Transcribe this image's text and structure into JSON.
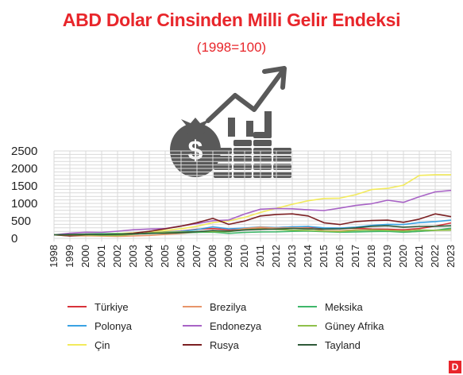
{
  "title": "ABD Dolar Cinsinden Milli Gelir Endeksi",
  "subtitle": "(1998=100)",
  "logo_text": "D",
  "chart_data": {
    "type": "line",
    "title": "ABD Dolar Cinsinden Milli Gelir Endeksi",
    "subtitle": "(1998=100)",
    "x": [
      "1998",
      "1999",
      "2000",
      "2001",
      "2002",
      "2003",
      "2004",
      "2005",
      "2006",
      "2007",
      "2008",
      "2009",
      "2010",
      "2011",
      "2012",
      "2013",
      "2014",
      "2015",
      "2016",
      "2017",
      "2018",
      "2019",
      "2020",
      "2021",
      "2022",
      "2023"
    ],
    "ylim": [
      0,
      2500
    ],
    "yticks": [
      0,
      500,
      1000,
      1500,
      2000,
      2500
    ],
    "grid": true,
    "legend_position": "bottom",
    "series": [
      {
        "name": "Türkiye",
        "color": "#d8333a",
        "values": [
          100,
          92,
          103,
          75,
          90,
          120,
          150,
          185,
          210,
          260,
          280,
          245,
          280,
          300,
          310,
          330,
          320,
          295,
          290,
          290,
          265,
          260,
          245,
          280,
          350,
          440
        ]
      },
      {
        "name": "Polonya",
        "color": "#3aa3e3",
        "values": [
          100,
          105,
          104,
          117,
          118,
          128,
          150,
          180,
          200,
          250,
          330,
          270,
          295,
          330,
          310,
          330,
          340,
          300,
          295,
          320,
          370,
          400,
          395,
          450,
          480,
          520
        ]
      },
      {
        "name": "Çin",
        "color": "#f2ea5c",
        "values": [
          100,
          108,
          118,
          128,
          142,
          160,
          190,
          225,
          275,
          345,
          450,
          500,
          600,
          740,
          860,
          975,
          1075,
          1140,
          1150,
          1250,
          1395,
          1430,
          1520,
          1800,
          1820,
          1820
        ]
      },
      {
        "name": "Brezilya",
        "color": "#e8956a",
        "values": [
          100,
          68,
          76,
          65,
          60,
          68,
          83,
          112,
          140,
          175,
          210,
          205,
          280,
          320,
          295,
          300,
          295,
          220,
          215,
          250,
          225,
          225,
          175,
          200,
          235,
          260
        ]
      },
      {
        "name": "Endonezya",
        "color": "#a863c6",
        "values": [
          100,
          145,
          175,
          170,
          205,
          245,
          265,
          280,
          355,
          420,
          505,
          525,
          695,
          835,
          855,
          845,
          815,
          795,
          865,
          940,
          990,
          1090,
          1030,
          1190,
          1330,
          1370
        ]
      },
      {
        "name": "Rusya",
        "color": "#7b1f22",
        "values": [
          100,
          70,
          96,
          112,
          125,
          148,
          200,
          272,
          350,
          447,
          570,
          400,
          495,
          640,
          685,
          700,
          640,
          445,
          395,
          480,
          510,
          520,
          460,
          550,
          700,
          620
        ]
      },
      {
        "name": "Meksika",
        "color": "#3fb76a",
        "values": [
          100,
          110,
          125,
          132,
          134,
          128,
          136,
          150,
          162,
          172,
          178,
          144,
          168,
          185,
          187,
          200,
          210,
          190,
          175,
          185,
          195,
          200,
          175,
          200,
          230,
          290
        ]
      },
      {
        "name": "Güney Afrika",
        "color": "#8fc04a",
        "values": [
          100,
          99,
          97,
          87,
          82,
          117,
          160,
          178,
          185,
          195,
          195,
          190,
          245,
          270,
          255,
          235,
          225,
          205,
          190,
          225,
          240,
          225,
          210,
          240,
          230,
          235
        ]
      },
      {
        "name": "Tayland",
        "color": "#2f5a39",
        "values": [
          100,
          110,
          116,
          107,
          115,
          126,
          146,
          150,
          167,
          190,
          223,
          206,
          240,
          255,
          265,
          285,
          270,
          265,
          270,
          300,
          345,
          360,
          320,
          340,
          345,
          360
        ]
      }
    ]
  }
}
